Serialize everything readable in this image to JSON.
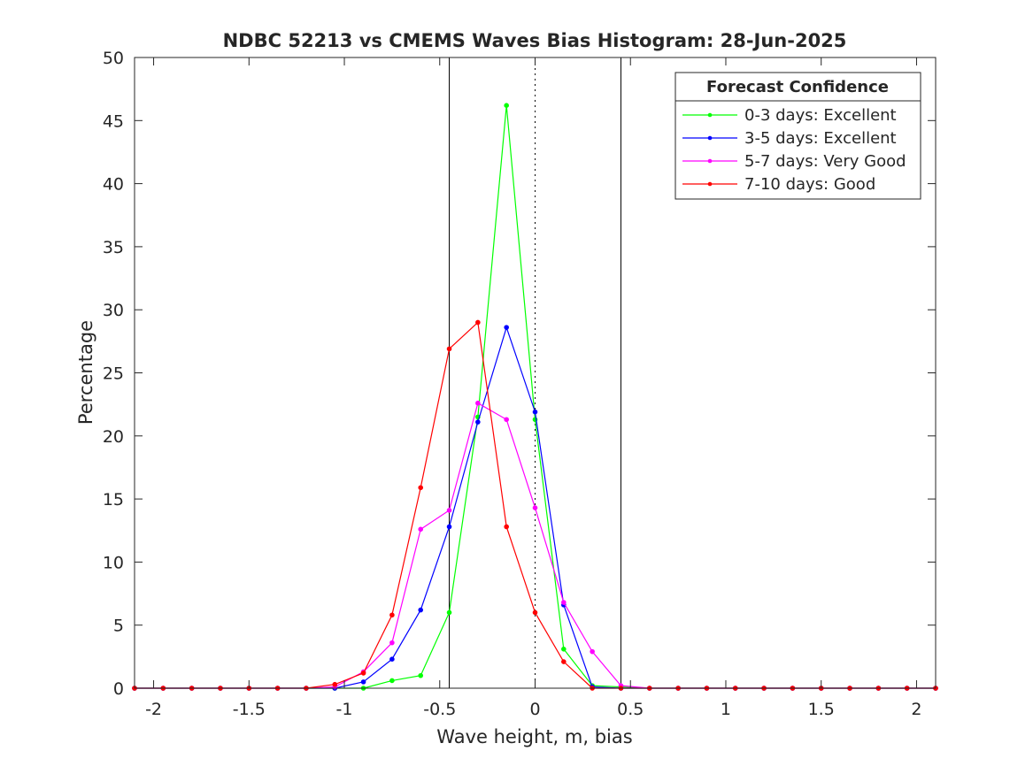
{
  "chart_data": {
    "type": "line",
    "title": "NDBC 52213 vs CMEMS Waves Bias Histogram: 28-Jun-2025",
    "xlabel": "Wave height, m, bias",
    "ylabel": "Percentage",
    "xlim": [
      -2.1,
      2.1
    ],
    "ylim": [
      0,
      50
    ],
    "xticks": [
      -2,
      -1.5,
      -1,
      -0.5,
      0,
      0.5,
      1,
      1.5,
      2
    ],
    "xtick_labels": [
      "-2",
      "-1.5",
      "-1",
      "-0.5",
      "0",
      "0.5",
      "1",
      "1.5",
      "2"
    ],
    "yticks": [
      0,
      5,
      10,
      15,
      20,
      25,
      30,
      35,
      40,
      45,
      50
    ],
    "ytick_labels": [
      "0",
      "5",
      "10",
      "15",
      "20",
      "25",
      "30",
      "35",
      "40",
      "45",
      "50"
    ],
    "grid": false,
    "reference_lines": {
      "solid": [
        -0.45,
        0.45
      ],
      "dotted": [
        0
      ]
    },
    "legend": {
      "title": "Forecast Confidence",
      "placement": "top-right"
    },
    "x": [
      -2.1,
      -1.95,
      -1.8,
      -1.65,
      -1.5,
      -1.35,
      -1.2,
      -1.05,
      -0.9,
      -0.75,
      -0.6,
      -0.45,
      -0.3,
      -0.15,
      0,
      0.15,
      0.3,
      0.45,
      0.6,
      0.75,
      0.9,
      1.05,
      1.2,
      1.35,
      1.5,
      1.65,
      1.8,
      1.95,
      2.1
    ],
    "series": [
      {
        "name": "0-3 days: Excellent",
        "color": "#00ff00",
        "values": [
          0,
          0,
          0,
          0,
          0,
          0,
          0,
          0,
          0,
          0.6,
          1.0,
          6.0,
          21.5,
          46.2,
          21.3,
          3.1,
          0.2,
          0.1,
          0,
          0,
          0,
          0,
          0,
          0,
          0,
          0,
          0,
          0,
          0
        ]
      },
      {
        "name": "3-5 days: Excellent",
        "color": "#0000ff",
        "values": [
          0,
          0,
          0,
          0,
          0,
          0,
          0,
          0,
          0.5,
          2.3,
          6.2,
          12.8,
          21.1,
          28.6,
          21.9,
          6.6,
          0.1,
          0,
          0,
          0,
          0,
          0,
          0,
          0,
          0,
          0,
          0,
          0,
          0
        ]
      },
      {
        "name": "5-7 days: Very Good",
        "color": "#ff00ff",
        "values": [
          0,
          0,
          0,
          0,
          0,
          0,
          0,
          0.1,
          1.3,
          3.6,
          12.6,
          14.1,
          22.6,
          21.3,
          14.3,
          6.8,
          2.9,
          0.2,
          0,
          0,
          0,
          0,
          0,
          0,
          0,
          0,
          0,
          0,
          0
        ]
      },
      {
        "name": "7-10 days: Good",
        "color": "#ff0000",
        "values": [
          0,
          0,
          0,
          0,
          0,
          0,
          0,
          0.3,
          1.2,
          5.8,
          15.9,
          26.9,
          29.0,
          12.8,
          6.0,
          2.1,
          0,
          0,
          0,
          0,
          0,
          0,
          0,
          0,
          0,
          0,
          0,
          0,
          0
        ]
      }
    ]
  }
}
